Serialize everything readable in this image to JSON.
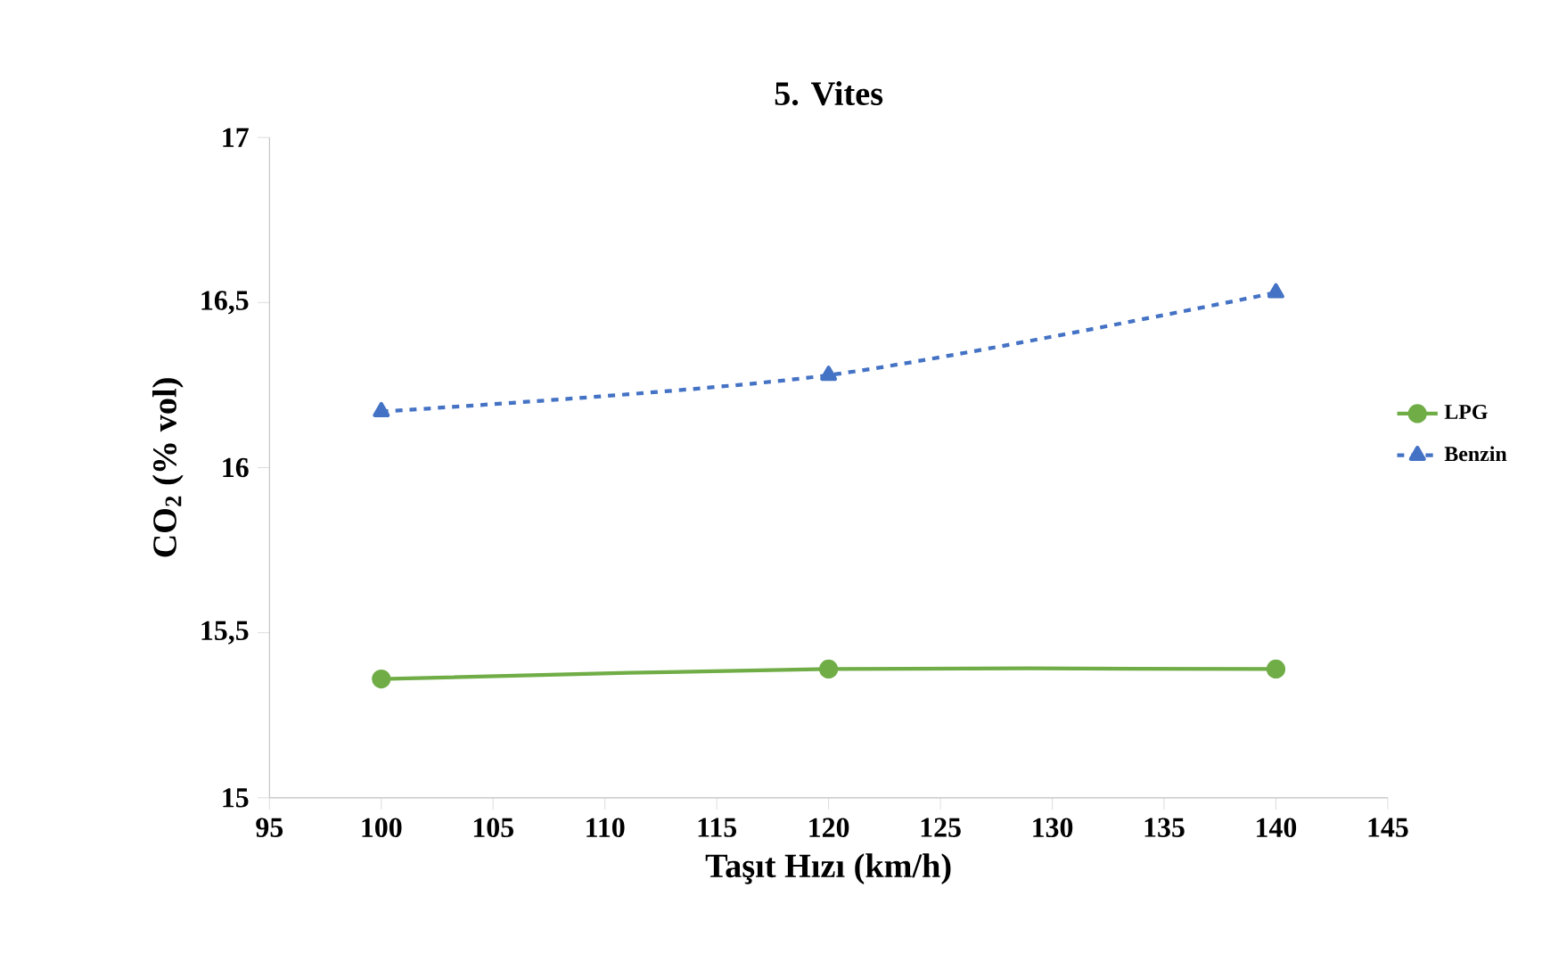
{
  "chart_data": {
    "type": "line",
    "title": "5. Vites",
    "xlabel": "Taşıt Hızı (km/h)",
    "ylabel": "CO$_{2}$ (% vol)",
    "x": [
      100,
      120,
      140
    ],
    "series": [
      {
        "name": "LPG",
        "color": "#70ad47",
        "values": [
          15.36,
          15.39,
          15.39
        ],
        "marker": "circle",
        "line_style": "solid"
      },
      {
        "name": "Benzin",
        "color": "#4472c4",
        "values": [
          16.17,
          16.28,
          16.53
        ],
        "marker": "triangle",
        "line_style": "dashed"
      }
    ],
    "xlim": [
      95,
      145
    ],
    "xticks": [
      95,
      100,
      105,
      110,
      115,
      120,
      125,
      130,
      135,
      140,
      145
    ],
    "ylim": [
      15,
      17
    ],
    "yticks": [
      15,
      {
        "value": 15.5,
        "label": "15,5"
      },
      16,
      {
        "value": 16.5,
        "label": "16,5"
      },
      17
    ],
    "grid": false,
    "legend": "right"
  }
}
